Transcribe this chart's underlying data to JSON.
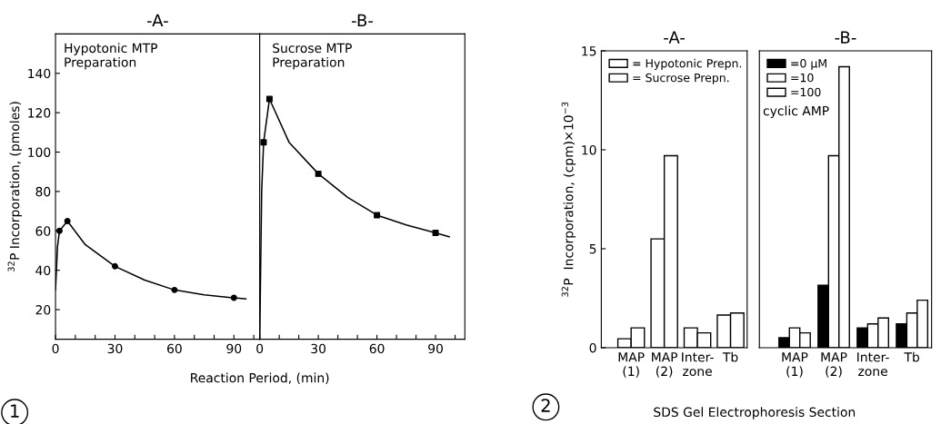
{
  "chart_data": [
    {
      "type": "line",
      "title": "-A-",
      "ylabel": "$^{32}$P Incorporation, (pmoles)",
      "xlabel": "Reaction Period, (min)",
      "annotations": [
        "Hypotonic MTP\nPreparation",
        "1"
      ],
      "xlim": [
        0,
        103
      ],
      "ylim": [
        5,
        160
      ],
      "xticks": [
        0,
        {
          "value": 10,
          "label": null
        },
        {
          "value": 20,
          "label": null
        },
        30,
        {
          "value": 40,
          "label": null
        },
        {
          "value": 50,
          "label": null
        },
        60,
        {
          "value": 70,
          "label": null
        },
        {
          "value": 80,
          "label": null
        },
        90,
        {
          "value": 100,
          "label": null
        }
      ],
      "yticks": [
        20,
        40,
        60,
        80,
        100,
        120,
        140
      ],
      "grid": false,
      "legend": false,
      "series": [
        {
          "type": "line",
          "color": "#000000",
          "marker": "none",
          "x": [
            0,
            1,
            2,
            6,
            15,
            30,
            45,
            60,
            75,
            90,
            96
          ],
          "values": [
            30,
            52,
            60,
            65,
            53,
            42,
            35,
            30,
            27.5,
            26,
            25.5
          ]
        },
        {
          "type": "scatter",
          "color": "#000000",
          "marker": "circle",
          "x": [
            2,
            6,
            30,
            60,
            90
          ],
          "values": [
            60,
            65,
            42,
            30,
            26
          ]
        }
      ]
    },
    {
      "type": "line",
      "title": "-B-",
      "annotations": [
        "Sucrose MTP\nPreparation"
      ],
      "tick_labels": "x",
      "xlim": [
        0,
        105
      ],
      "ylim": [
        5,
        160
      ],
      "xticks": [
        0,
        {
          "value": 10,
          "label": null
        },
        {
          "value": 20,
          "label": null
        },
        30,
        {
          "value": 40,
          "label": null
        },
        {
          "value": 50,
          "label": null
        },
        60,
        {
          "value": 70,
          "label": null
        },
        {
          "value": 80,
          "label": null
        },
        90,
        {
          "value": 100,
          "label": null
        }
      ],
      "grid": false,
      "legend": false,
      "series": [
        {
          "type": "line",
          "color": "#000000",
          "marker": "none",
          "x": [
            0,
            1,
            2,
            5,
            15,
            30,
            45,
            60,
            75,
            90,
            97
          ],
          "values": [
            5,
            80,
            105,
            127,
            105,
            89,
            77,
            68,
            63,
            59,
            57
          ]
        },
        {
          "type": "scatter",
          "color": "#000000",
          "marker": "square",
          "x": [
            2,
            5,
            30,
            60,
            90
          ],
          "values": [
            105,
            127,
            89,
            68,
            59
          ]
        }
      ]
    },
    {
      "type": "bar",
      "title": "-A-",
      "ylabel": "$^{32}$P  Incorporation, (cpm)×10$^{−3}$",
      "xlabel": "SDS Gel Electrophoresis Section",
      "annotations": [
        "2"
      ],
      "categories": [
        "MAP\n(1)",
        "MAP\n(2)",
        "Inter-\nzone",
        "Tb"
      ],
      "ylim": [
        0,
        15
      ],
      "yticks": [
        0,
        5,
        10,
        15
      ],
      "grid": false,
      "legend": "top left",
      "series": [
        {
          "name": "= Hypotonic Prepn.",
          "color": "#ffffff",
          "values": [
            0.45,
            5.5,
            1.0,
            1.65
          ]
        },
        {
          "name": "= Sucrose Prepn.",
          "color": "#ffffff",
          "values": [
            1.0,
            9.7,
            0.75,
            1.75
          ]
        }
      ]
    },
    {
      "type": "bar",
      "title": "-B-",
      "annotations": [
        "cyclic AMP"
      ],
      "tick_labels": "x",
      "categories": [
        "MAP\n(1)",
        "MAP\n(2)",
        "Inter-\nzone",
        "Tb"
      ],
      "ylim": [
        0,
        15
      ],
      "grid": false,
      "legend": "top left",
      "series": [
        {
          "name": "=0 μM",
          "color": "#000000",
          "values": [
            0.5,
            3.15,
            1.0,
            1.2
          ]
        },
        {
          "name": "=10",
          "color": "#ffffff",
          "values": [
            1.0,
            9.7,
            1.2,
            1.75
          ]
        },
        {
          "name": "=100",
          "color": "#ffffff",
          "values": [
            0.75,
            14.2,
            1.5,
            2.4
          ]
        }
      ]
    }
  ]
}
